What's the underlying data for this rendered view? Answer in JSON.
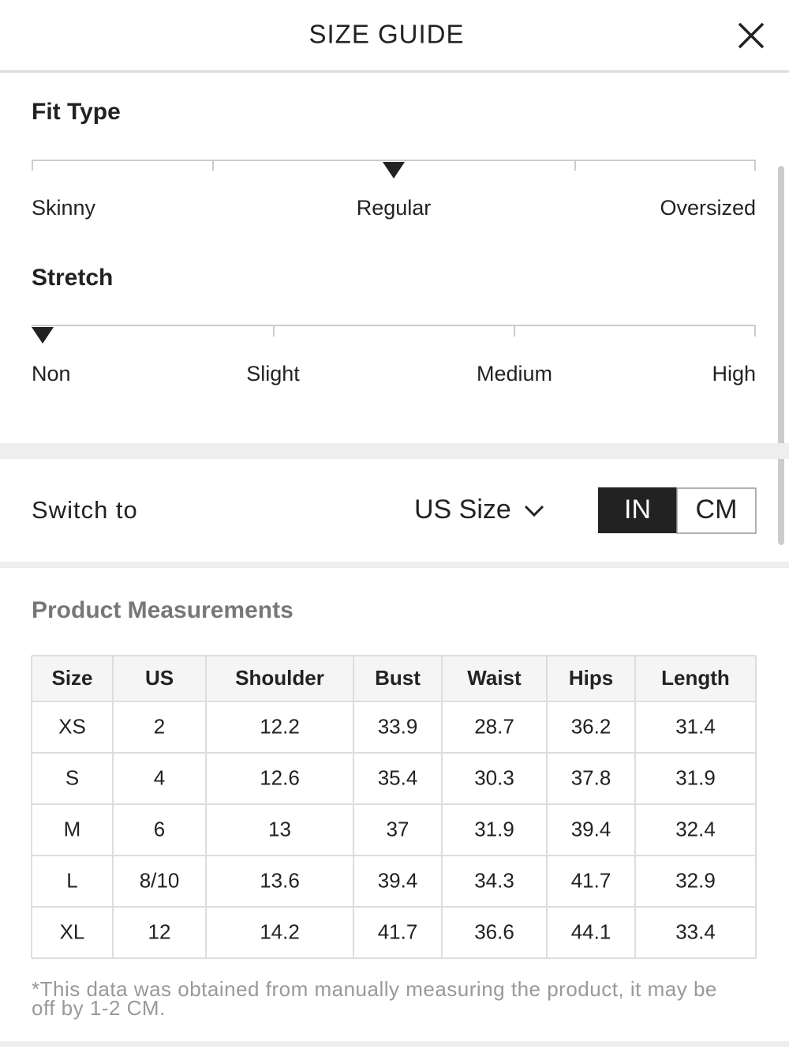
{
  "header": {
    "title": "SIZE GUIDE"
  },
  "fit_type": {
    "title": "Fit Type",
    "labels": [
      "Skinny",
      "Regular",
      "Oversized"
    ]
  },
  "stretch": {
    "title": "Stretch",
    "labels": [
      "Non",
      "Slight",
      "Medium",
      "High"
    ]
  },
  "switch": {
    "label": "Switch to",
    "size_system": "US Size",
    "units": [
      "IN",
      "CM"
    ]
  },
  "measurements": {
    "title": "Product Measurements",
    "table": {
      "columns": [
        "Size",
        "US",
        "Shoulder",
        "Bust",
        "Waist",
        "Hips",
        "Length"
      ],
      "rows": [
        [
          "XS",
          "2",
          "12.2",
          "33.9",
          "28.7",
          "36.2",
          "31.4"
        ],
        [
          "S",
          "4",
          "12.6",
          "35.4",
          "30.3",
          "37.8",
          "31.9"
        ],
        [
          "M",
          "6",
          "13",
          "37",
          "31.9",
          "39.4",
          "32.4"
        ],
        [
          "L",
          "8/10",
          "13.6",
          "39.4",
          "34.3",
          "41.7",
          "32.9"
        ],
        [
          "XL",
          "12",
          "14.2",
          "41.7",
          "36.6",
          "44.1",
          "33.4"
        ]
      ]
    },
    "note": "*This data was obtained from manually measuring the product, it may be off by 1-2 CM."
  }
}
